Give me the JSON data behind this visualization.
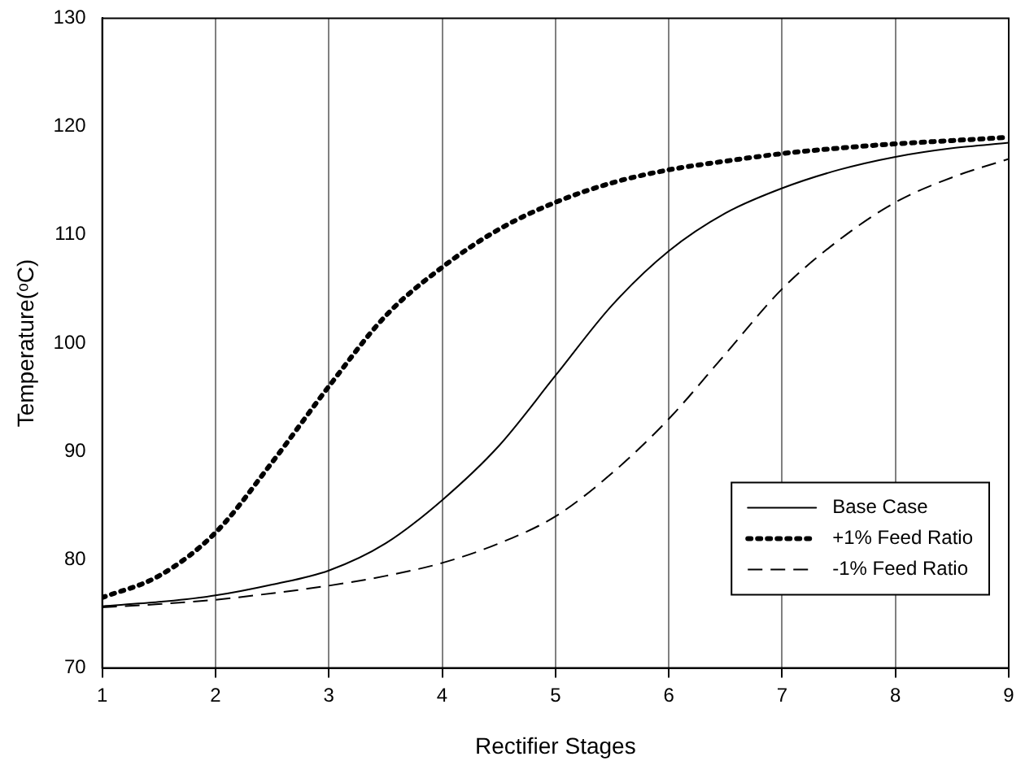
{
  "chart_data": {
    "type": "line",
    "xlabel": "Rectifier Stages",
    "ylabel": "Temperature(ᵒC)",
    "x": [
      1,
      1.5,
      2,
      2.5,
      3,
      3.5,
      4,
      4.5,
      5,
      5.5,
      6,
      6.5,
      7,
      7.5,
      8,
      8.5,
      9
    ],
    "series": [
      {
        "name": "Base Case",
        "color": "#000000",
        "line_style": "solid",
        "values": [
          75.7,
          76.1,
          76.7,
          77.7,
          79,
          81.5,
          85.5,
          90.5,
          97,
          103.5,
          108.5,
          112,
          114.3,
          116,
          117.2,
          118,
          118.5
        ]
      },
      {
        "name": "+1% Feed Ratio",
        "color": "#000000",
        "line_style": "dotted",
        "values": [
          76.5,
          78.5,
          82.5,
          89,
          96,
          102.5,
          107,
          110.5,
          113,
          114.8,
          116,
          116.8,
          117.5,
          118,
          118.4,
          118.7,
          119
        ]
      },
      {
        "name": "-1% Feed Ratio",
        "color": "#000000",
        "line_style": "dashed",
        "values": [
          75.6,
          75.9,
          76.3,
          76.9,
          77.6,
          78.5,
          79.7,
          81.5,
          84,
          88,
          93,
          99,
          105,
          109.5,
          113,
          115.3,
          117
        ]
      }
    ],
    "xlim": [
      1,
      9
    ],
    "xticks": [
      1,
      2,
      3,
      4,
      5,
      6,
      7,
      8,
      9
    ],
    "ylim": [
      70,
      130
    ],
    "yticks": [
      70,
      80,
      90,
      100,
      110,
      120,
      130
    ],
    "grid": "x",
    "legend": "bottom right",
    "marker": "none"
  }
}
